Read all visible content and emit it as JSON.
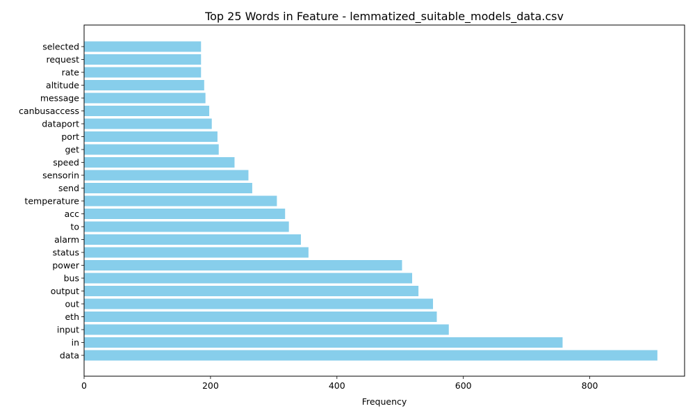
{
  "chart_data": {
    "type": "bar",
    "orientation": "horizontal",
    "title": "Top 25 Words in Feature - lemmatized_suitable_models_data.csv",
    "xlabel": "Frequency",
    "ylabel": "",
    "xlim": [
      0,
      950
    ],
    "xticks": [
      0,
      200,
      400,
      600,
      800
    ],
    "grid": false,
    "bar_color": "#87CEEB",
    "categories": [
      "data",
      "in",
      "input",
      "eth",
      "out",
      "output",
      "bus",
      "power",
      "status",
      "alarm",
      "to",
      "acc",
      "temperature",
      "send",
      "sensorin",
      "speed",
      "get",
      "port",
      "dataport",
      "canbusaccess",
      "message",
      "altitude",
      "rate",
      "request",
      "selected"
    ],
    "values": [
      907,
      757,
      577,
      558,
      552,
      529,
      519,
      503,
      355,
      343,
      324,
      318,
      305,
      266,
      260,
      238,
      213,
      211,
      202,
      198,
      192,
      190,
      185,
      185,
      185
    ]
  }
}
